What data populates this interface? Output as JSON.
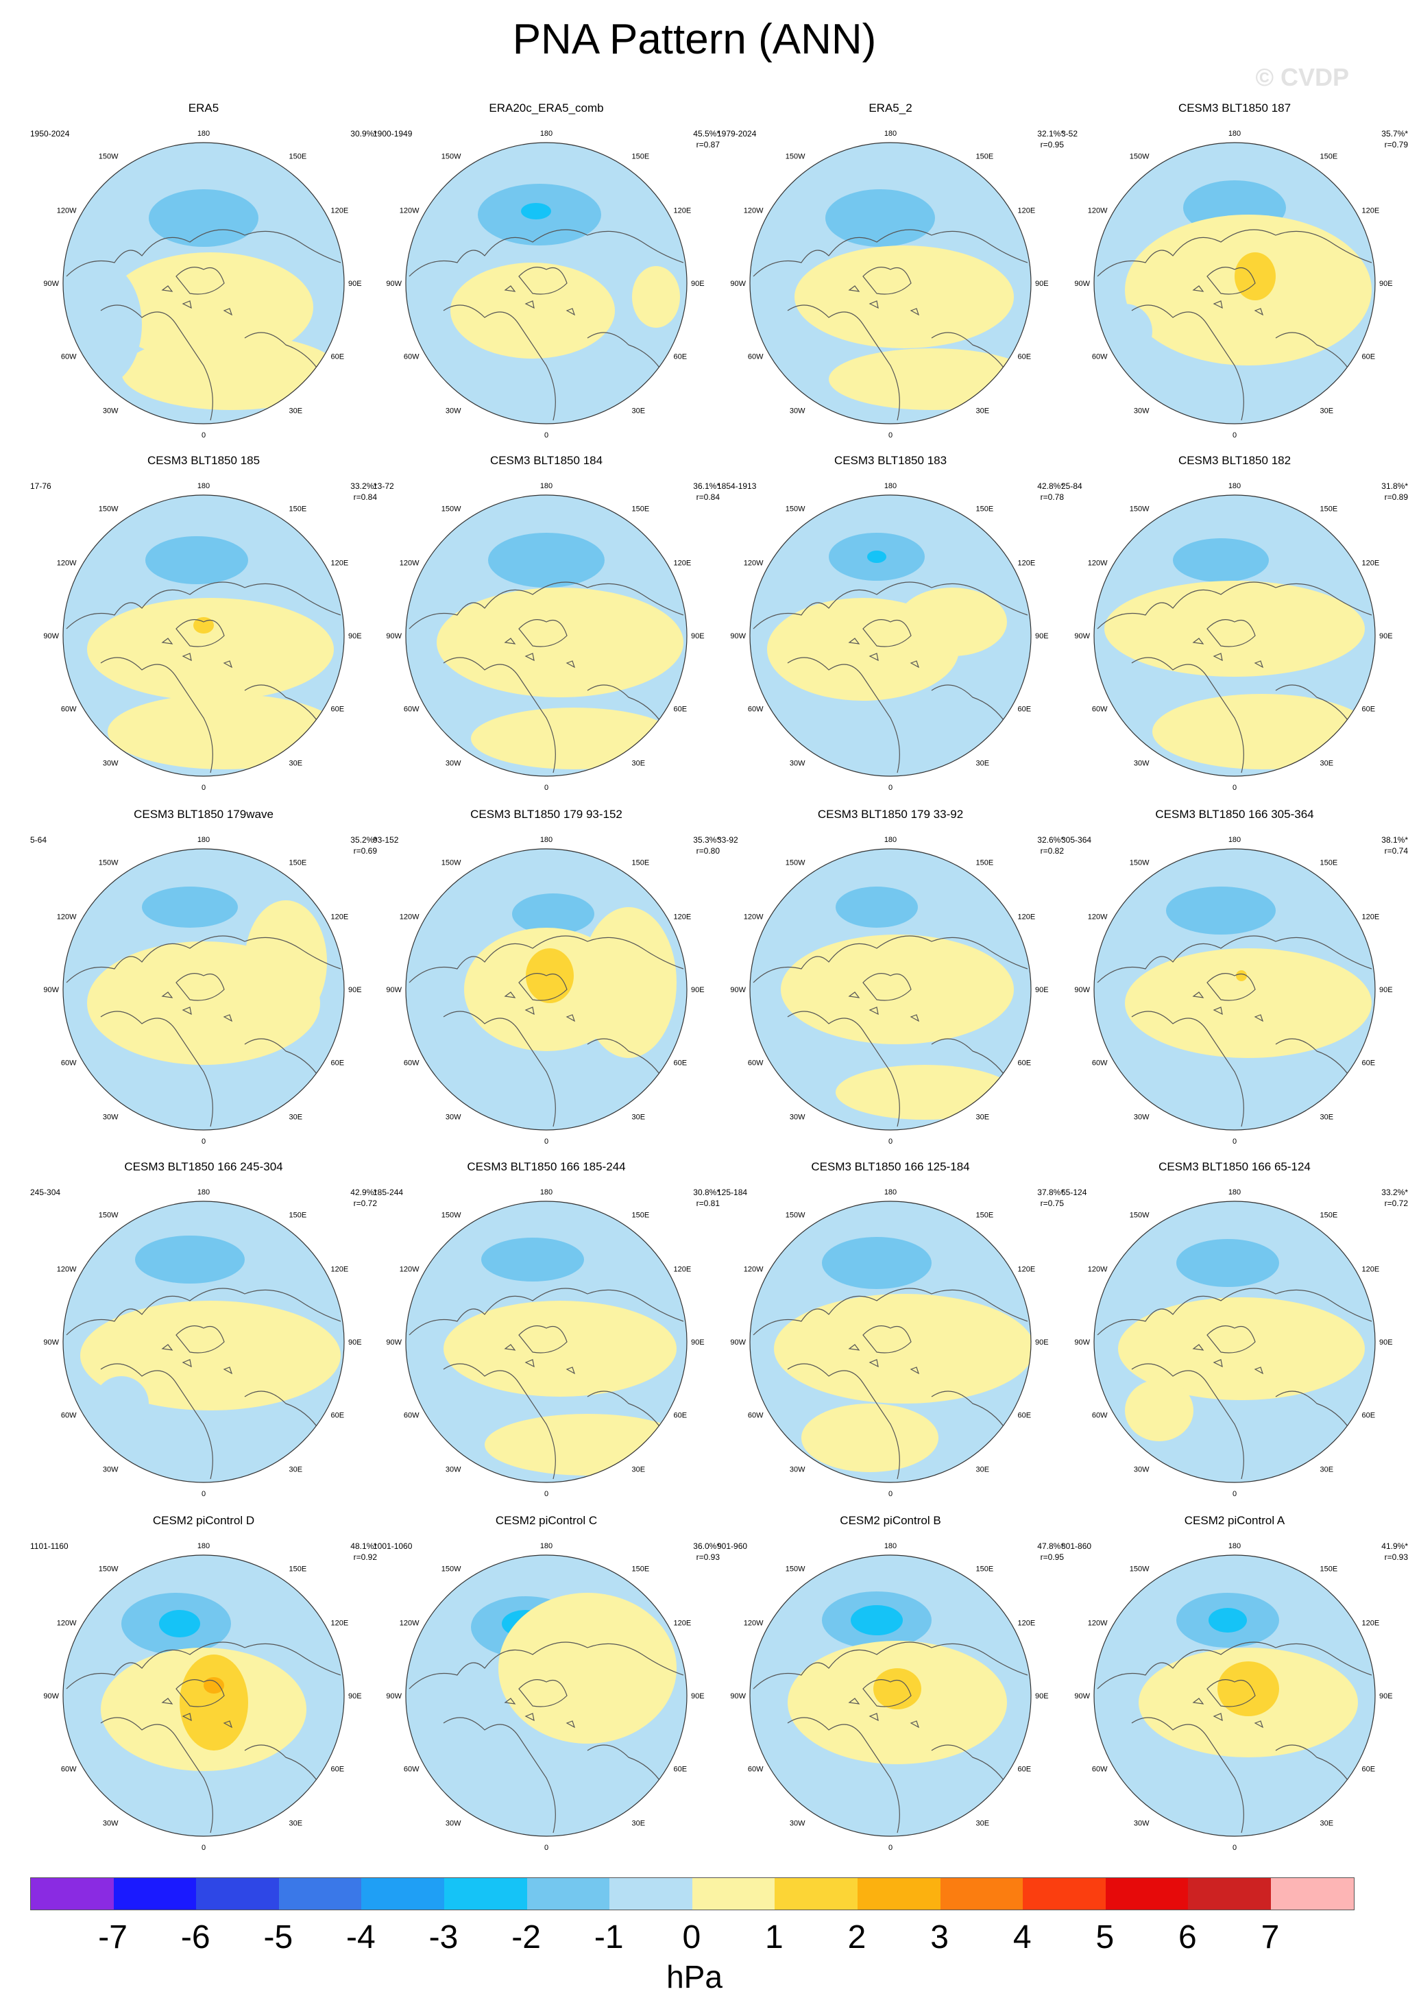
{
  "title": "PNA Pattern (ANN)",
  "watermark": "© CVDP",
  "lon_labels": {
    "top": "180",
    "bottom": "0",
    "upper_left": "150W",
    "upper_right": "150E",
    "left_upper": "120W",
    "right_upper": "120E",
    "left": "90W",
    "right": "90E",
    "left_lower": "60W",
    "right_lower": "60E",
    "lower_left": "30W",
    "lower_right": "30E"
  },
  "panels": [
    {
      "title": "ERA5",
      "period": "1950-2024",
      "pct": "30.9%*",
      "r": ""
    },
    {
      "title": "ERA20c_ERA5_comb",
      "period": "1900-1949",
      "pct": "45.5%*",
      "r": "r=0.87"
    },
    {
      "title": "ERA5_2",
      "period": "1979-2024",
      "pct": "32.1%*",
      "r": "r=0.95"
    },
    {
      "title": "CESM3 BLT1850 187",
      "period": "3-52",
      "pct": "35.7%*",
      "r": "r=0.79"
    },
    {
      "title": "CESM3 BLT1850 185",
      "period": "17-76",
      "pct": "33.2%*",
      "r": "r=0.84"
    },
    {
      "title": "CESM3 BLT1850 184",
      "period": "13-72",
      "pct": "36.1%*",
      "r": "r=0.84"
    },
    {
      "title": "CESM3 BLT1850 183",
      "period": "1854-1913",
      "pct": "42.8%*",
      "r": "r=0.78"
    },
    {
      "title": "CESM3 BLT1850 182",
      "period": "25-84",
      "pct": "31.8%*",
      "r": "r=0.89"
    },
    {
      "title": "CESM3 BLT1850 179wave",
      "period": "5-64",
      "pct": "35.2%*",
      "r": "r=0.69"
    },
    {
      "title": "CESM3 BLT1850 179 93-152",
      "period": "93-152",
      "pct": "35.3%*",
      "r": "r=0.80"
    },
    {
      "title": "CESM3 BLT1850 179 33-92",
      "period": "33-92",
      "pct": "32.6%*",
      "r": "r=0.82"
    },
    {
      "title": "CESM3 BLT1850 166 305-364",
      "period": "305-364",
      "pct": "38.1%*",
      "r": "r=0.74"
    },
    {
      "title": "CESM3 BLT1850 166 245-304",
      "period": "245-304",
      "pct": "42.9%*",
      "r": "r=0.72"
    },
    {
      "title": "CESM3 BLT1850 166 185-244",
      "period": "185-244",
      "pct": "30.8%*",
      "r": "r=0.81"
    },
    {
      "title": "CESM3 BLT1850 166 125-184",
      "period": "125-184",
      "pct": "37.8%*",
      "r": "r=0.75"
    },
    {
      "title": "CESM3 BLT1850 166 65-124",
      "period": "65-124",
      "pct": "33.2%*",
      "r": "r=0.72"
    },
    {
      "title": "CESM2 piControl D",
      "period": "1101-1160",
      "pct": "48.1%*",
      "r": "r=0.92"
    },
    {
      "title": "CESM2 piControl C",
      "period": "1001-1060",
      "pct": "36.0%*",
      "r": "r=0.93"
    },
    {
      "title": "CESM2 piControl B",
      "period": "901-960",
      "pct": "47.8%*",
      "r": "r=0.95"
    },
    {
      "title": "CESM2 piControl A",
      "period": "801-860",
      "pct": "41.9%*",
      "r": "r=0.93"
    }
  ],
  "colorbar": {
    "colors": [
      "#8a2be2",
      "#1a1aff",
      "#2e47e6",
      "#3a78e8",
      "#1f9ff5",
      "#15c3f7",
      "#74c7ef",
      "#b6dff4",
      "#fbf3a3",
      "#fcd536",
      "#fcb10f",
      "#fb7d10",
      "#fb3e0f",
      "#e60a0a",
      "#cd2222",
      "#fdb5b5"
    ],
    "labels": [
      "-7",
      "-6",
      "-5",
      "-4",
      "-3",
      "-2",
      "-1",
      "0",
      "1",
      "2",
      "3",
      "4",
      "5",
      "6",
      "7"
    ],
    "unit": "hPa"
  }
}
